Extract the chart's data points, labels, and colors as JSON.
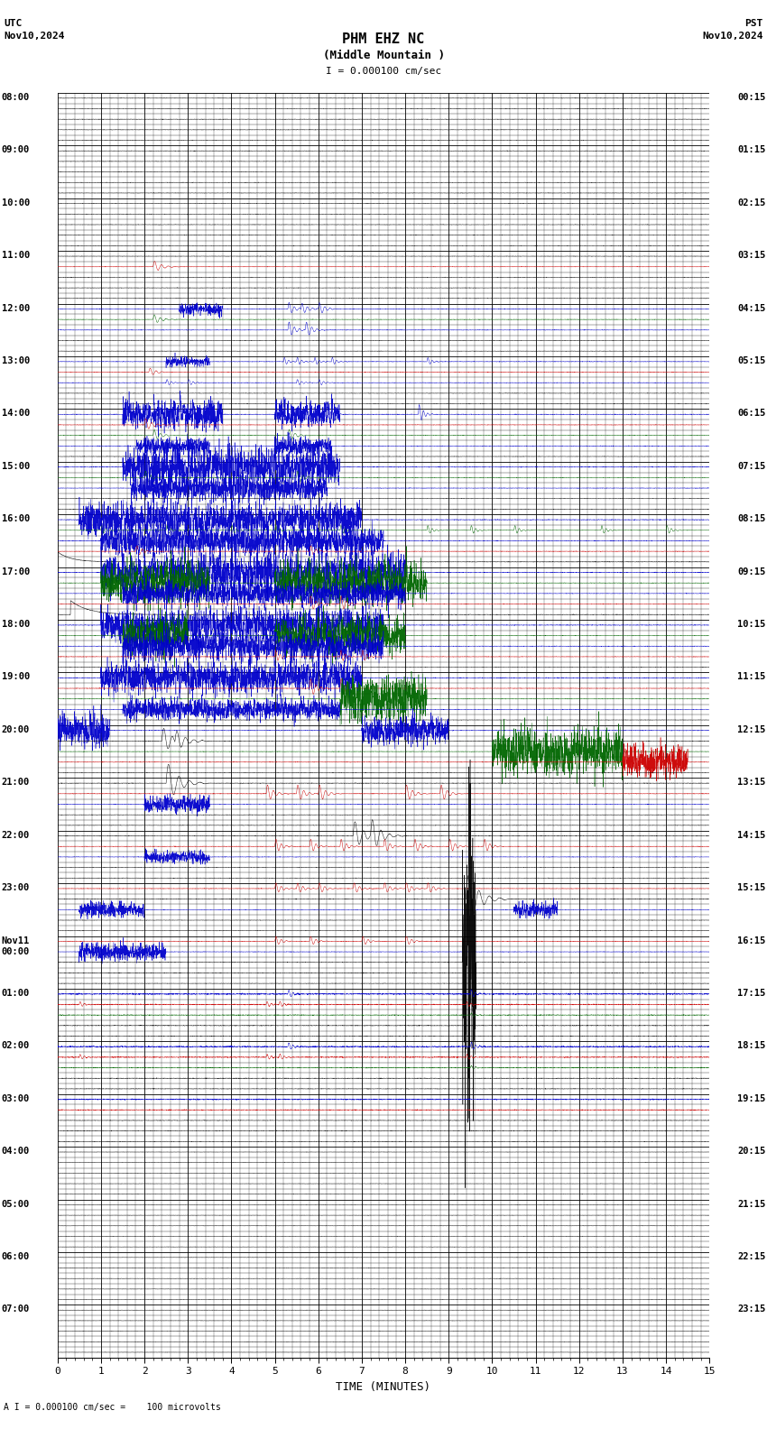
{
  "title_line1": "PHM EHZ NC",
  "title_line2": "(Middle Mountain )",
  "scale_text": "I = 0.000100 cm/sec",
  "left_label_line1": "UTC",
  "left_label_line2": "Nov10,2024",
  "right_label_line1": "PST",
  "right_label_line2": "Nov10,2024",
  "bottom_label": "TIME (MINUTES)",
  "footer_text": "A I = 0.000100 cm/sec =    100 microvolts",
  "utc_times_left": [
    "08:00",
    "09:00",
    "10:00",
    "11:00",
    "12:00",
    "13:00",
    "14:00",
    "15:00",
    "16:00",
    "17:00",
    "18:00",
    "19:00",
    "20:00",
    "21:00",
    "22:00",
    "23:00",
    "Nov11\n00:00",
    "01:00",
    "02:00",
    "03:00",
    "04:00",
    "05:00",
    "06:00",
    "07:00"
  ],
  "pst_times_right": [
    "00:15",
    "01:15",
    "02:15",
    "03:15",
    "04:15",
    "05:15",
    "06:15",
    "07:15",
    "08:15",
    "09:15",
    "10:15",
    "11:15",
    "12:15",
    "13:15",
    "14:15",
    "15:15",
    "16:15",
    "17:15",
    "18:15",
    "19:15",
    "20:15",
    "21:15",
    "22:15",
    "23:15"
  ],
  "n_rows": 24,
  "n_subrows": 5,
  "x_min": 0,
  "x_max": 15,
  "x_ticks": [
    0,
    1,
    2,
    3,
    4,
    5,
    6,
    7,
    8,
    9,
    10,
    11,
    12,
    13,
    14,
    15
  ],
  "background_color": "#ffffff",
  "trace_color_black": "#000000",
  "trace_color_blue": "#0000cc",
  "trace_color_red": "#cc0000",
  "trace_color_green": "#006600"
}
